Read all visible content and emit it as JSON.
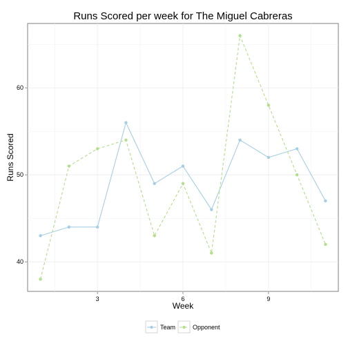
{
  "chart_data": {
    "type": "line",
    "title": "Runs Scored per week for The Miguel Cabreras",
    "xlabel": "Week",
    "ylabel": "Runs Scored",
    "x": [
      1,
      2,
      3,
      4,
      5,
      6,
      7,
      8,
      9,
      10,
      11
    ],
    "xlim": [
      0.55,
      11.45
    ],
    "ylim": [
      36.6,
      67.4
    ],
    "xticks": [
      3,
      6,
      9
    ],
    "yticks": [
      40,
      50,
      60
    ],
    "grid": true,
    "legend_position": "bottom",
    "series": [
      {
        "name": "Team",
        "values": [
          43,
          44,
          44,
          56,
          49,
          51,
          46,
          54,
          52,
          53,
          47
        ],
        "color": "#a6cee3",
        "line_style": "solid"
      },
      {
        "name": "Opponent",
        "values": [
          38,
          51,
          53,
          54,
          43,
          49,
          41,
          66,
          58,
          50,
          42
        ],
        "color": "#b2df8a",
        "line_style": "dashed"
      }
    ]
  }
}
